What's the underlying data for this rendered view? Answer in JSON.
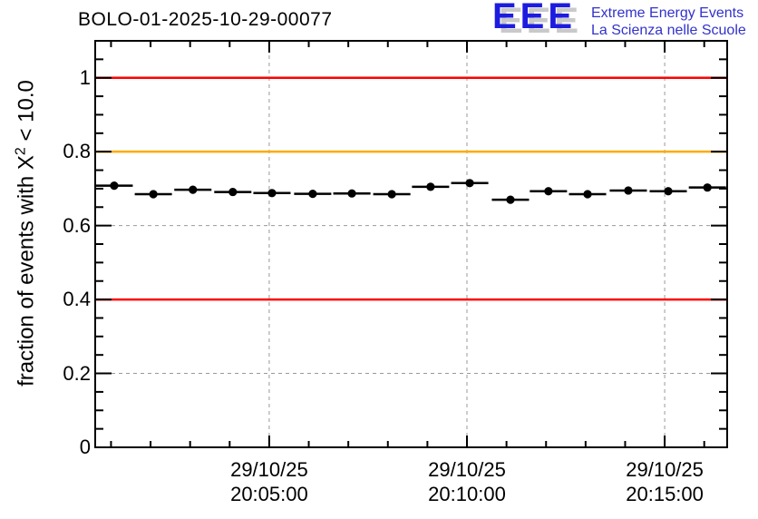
{
  "header": {
    "title": "BOLO-01-2025-10-29-00077",
    "logo": {
      "acronym": "EEE",
      "line1": "Extreme Energy Events",
      "line2": "La Scienza nelle Scuole"
    }
  },
  "axis": {
    "ylabel_pre": "fraction of events with X",
    "ylabel_sup": "2",
    "ylabel_post": " < 10.0"
  },
  "colors": {
    "logo_blue": "#1c1ce0",
    "logo_text_blue": "#3232cc",
    "logo_shadow": "#c9c9c9",
    "reference_red": "#ff0000",
    "reference_orange": "#ffaa00",
    "grid_gray": "#999999",
    "marker_black": "#000000"
  },
  "chart_data": {
    "type": "scatter",
    "title": "BOLO-01-2025-10-29-00077",
    "xlabel": "",
    "ylabel": "fraction of events with X² < 10.0",
    "ylim": [
      0,
      1.1
    ],
    "xlim_minutes": [
      0.6,
      16.58
    ],
    "grid": true,
    "y_ticks": [
      0,
      0.2,
      0.4,
      0.6,
      0.8,
      1
    ],
    "y_tick_labels": [
      "0",
      "0.2",
      "0.4",
      "0.6",
      "0.8",
      "1"
    ],
    "y_minor_step": 0.05,
    "x_minor_step_minutes": 1,
    "x_ticks": [
      {
        "minute": 5,
        "date": "29/10/25",
        "time": "20:05:00"
      },
      {
        "minute": 10,
        "date": "29/10/25",
        "time": "20:10:00"
      },
      {
        "minute": 15,
        "date": "29/10/25",
        "time": "20:15:00"
      }
    ],
    "reference_lines": [
      {
        "value": 1.0,
        "color": "#ff0000"
      },
      {
        "value": 0.8,
        "color": "#ffaa00"
      },
      {
        "value": 0.4,
        "color": "#ff0000"
      }
    ],
    "points": {
      "times": [
        "20:01:00",
        "20:02:00",
        "20:03:00",
        "20:04:00",
        "20:05:00",
        "20:06:00",
        "20:07:00",
        "20:08:00",
        "20:09:00",
        "20:10:00",
        "20:11:00",
        "20:12:00",
        "20:13:00",
        "20:14:00",
        "20:15:00",
        "20:16:00"
      ],
      "x_minutes": [
        1.08,
        2.07,
        3.07,
        4.08,
        5.07,
        6.1,
        7.09,
        8.1,
        9.08,
        10.07,
        11.1,
        12.06,
        13.05,
        14.08,
        15.09,
        16.08
      ],
      "values": [
        0.708,
        0.685,
        0.697,
        0.691,
        0.688,
        0.686,
        0.687,
        0.685,
        0.705,
        0.715,
        0.67,
        0.693,
        0.685,
        0.695,
        0.693,
        0.703
      ],
      "xerr_minutes": 0.47
    }
  }
}
